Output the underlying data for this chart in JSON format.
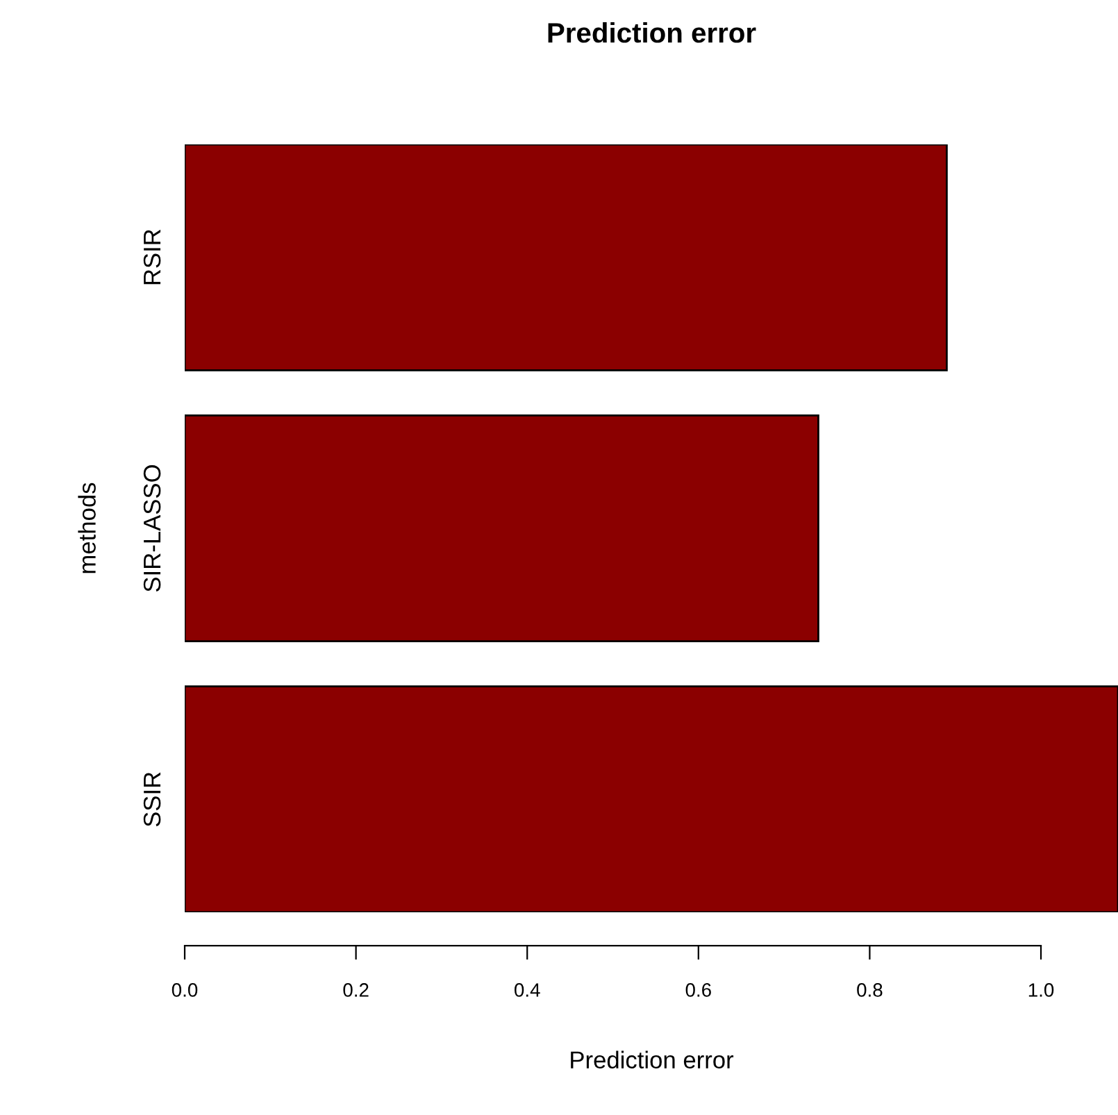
{
  "chart_data": {
    "type": "bar",
    "orientation": "horizontal",
    "title": "Prediction error",
    "xlabel": "Prediction error",
    "ylabel": "methods",
    "categories": [
      "RSIR",
      "SIR-LASSO",
      "SSIR"
    ],
    "values": [
      0.89,
      0.74,
      1.09
    ],
    "color": "#8b0000",
    "xlim": [
      0,
      1.09
    ],
    "xticks": [
      {
        "value": 0,
        "label": "0.0"
      },
      {
        "value": 0.2,
        "label": "0.2"
      },
      {
        "value": 0.4,
        "label": "0.4"
      },
      {
        "value": 0.6,
        "label": "0.6"
      },
      {
        "value": 0.8,
        "label": "0.8"
      },
      {
        "value": 1.0,
        "label": "1.0"
      }
    ],
    "grid": false,
    "legend": false
  }
}
